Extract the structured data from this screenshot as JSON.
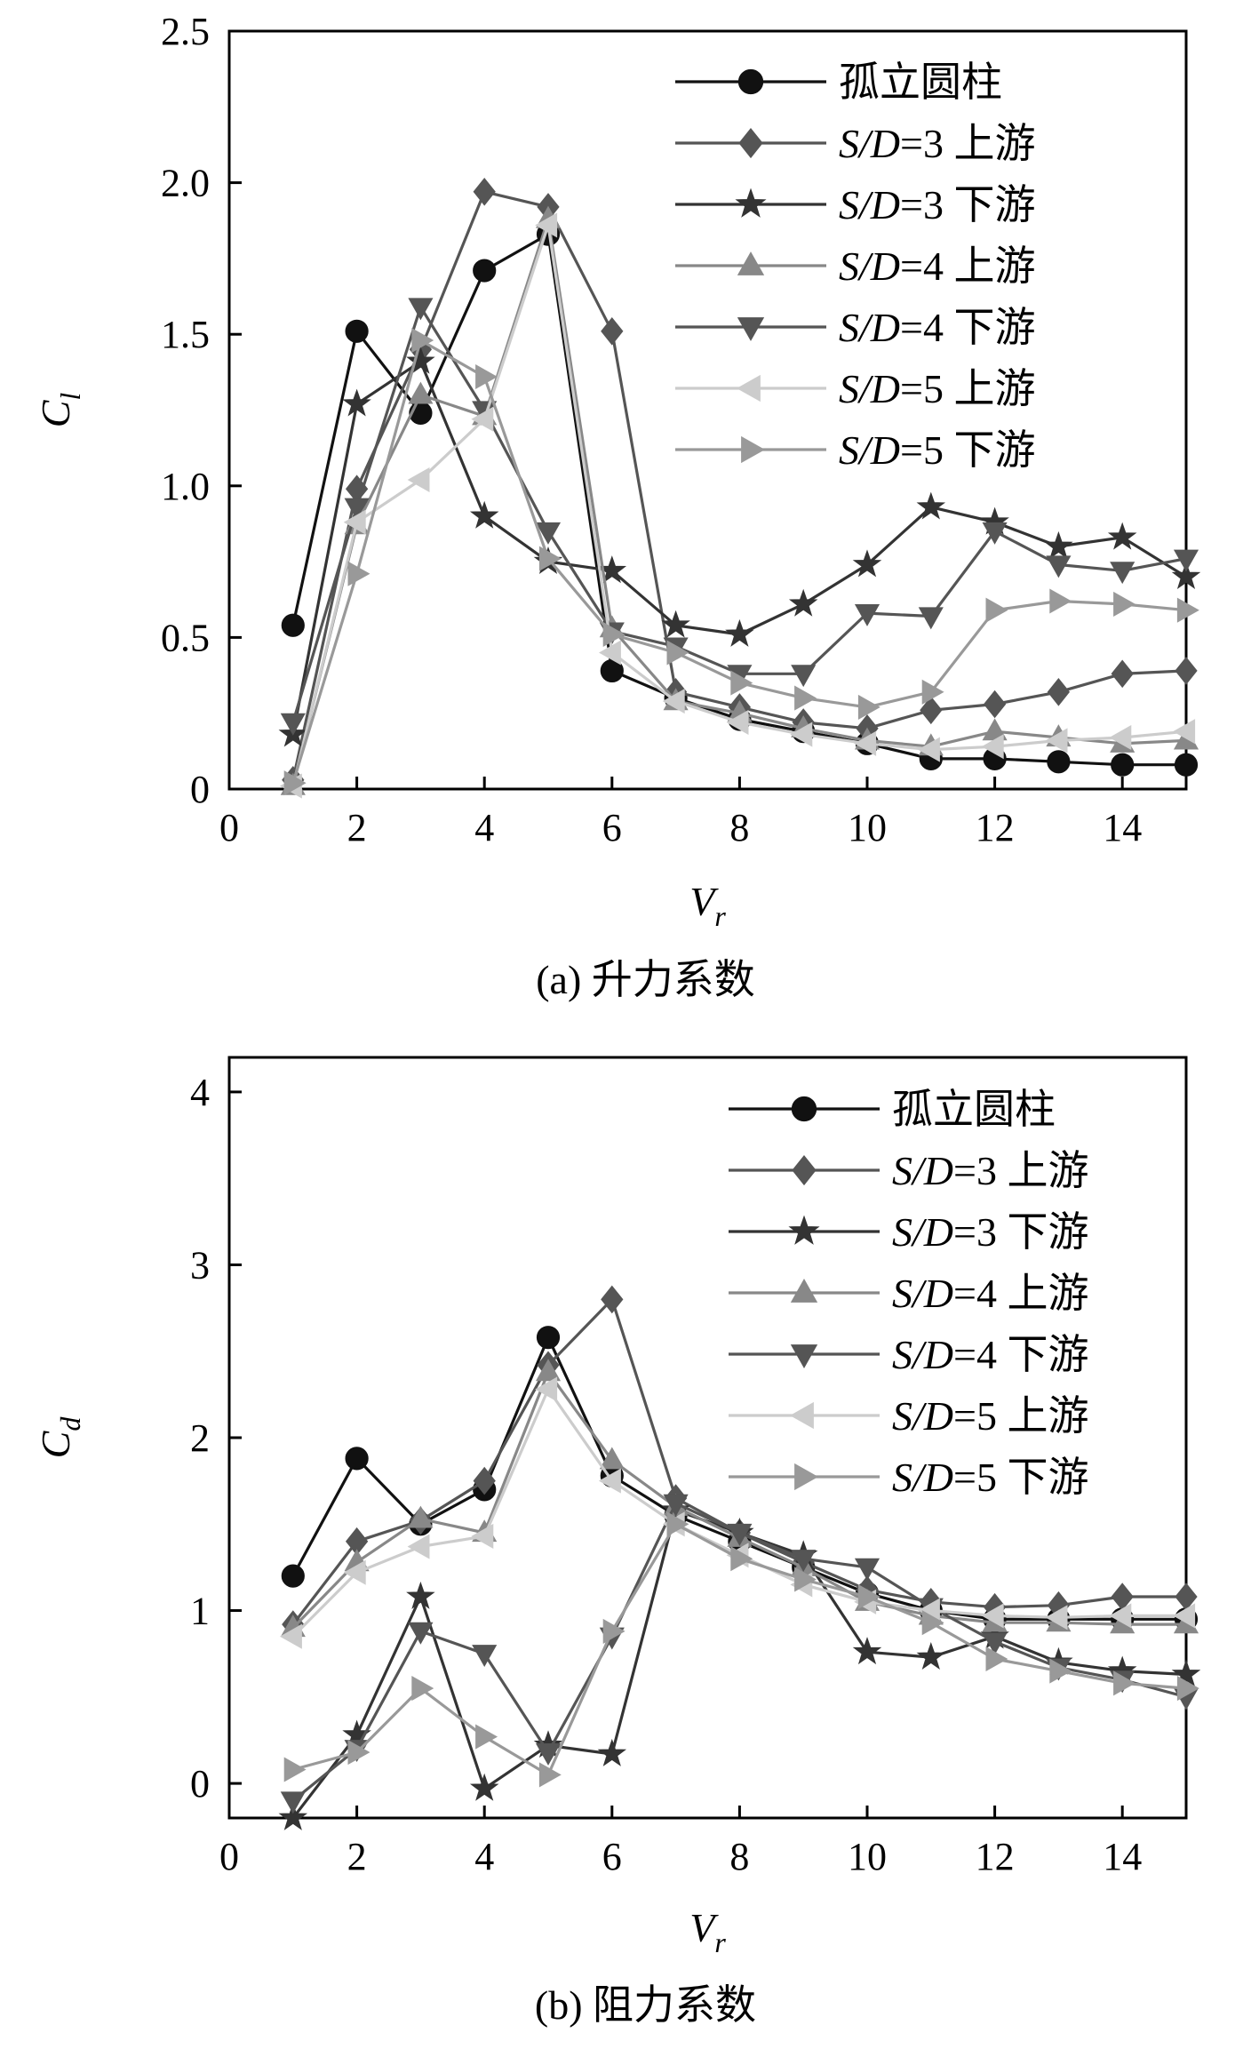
{
  "chart_data": [
    {
      "type": "line",
      "title": "",
      "caption": "(a) 升力系数",
      "xlabel": "V",
      "xlabel_sub": "r",
      "ylabel": "C",
      "ylabel_sub": "l",
      "xlim": [
        0,
        15
      ],
      "ylim": [
        0,
        2.5
      ],
      "xticks": [
        0,
        2,
        4,
        6,
        8,
        10,
        12,
        14
      ],
      "yticks": [
        0,
        0.5,
        1.0,
        1.5,
        2.0,
        2.5
      ],
      "ytick_labels": [
        "0",
        "0.5",
        "1.0",
        "1.5",
        "2.0",
        "2.5"
      ],
      "grid": false,
      "legend_position": "top-right",
      "x": [
        1,
        2,
        3,
        4,
        5,
        6,
        7,
        8,
        9,
        10,
        11,
        12,
        13,
        14,
        15
      ],
      "series": [
        {
          "name": "孤立圆柱",
          "legend_prefix": "",
          "legend_suffix": "孤立圆柱",
          "marker": "circle",
          "color": "#111111",
          "values": [
            0.54,
            1.51,
            1.24,
            1.71,
            1.83,
            0.39,
            0.3,
            0.23,
            0.19,
            0.15,
            0.1,
            0.1,
            0.09,
            0.08,
            0.08
          ]
        },
        {
          "name": "S/D=3 上游",
          "legend_prefix": "S/D",
          "legend_suffix": "=3 上游",
          "marker": "diamond",
          "color": "#555555",
          "values": [
            0.03,
            0.99,
            1.45,
            1.97,
            1.92,
            1.51,
            0.32,
            0.27,
            0.22,
            0.2,
            0.26,
            0.28,
            0.32,
            0.38,
            0.39
          ]
        },
        {
          "name": "S/D=3 下游",
          "legend_prefix": "S/D",
          "legend_suffix": "=3 下游",
          "marker": "star",
          "color": "#333333",
          "values": [
            0.18,
            1.27,
            1.41,
            0.9,
            0.75,
            0.72,
            0.54,
            0.51,
            0.61,
            0.74,
            0.93,
            0.88,
            0.8,
            0.83,
            0.7
          ]
        },
        {
          "name": "S/D=4 上游",
          "legend_prefix": "S/D",
          "legend_suffix": "=4 上游",
          "marker": "triangle-up",
          "color": "#888888",
          "values": [
            0.01,
            0.87,
            1.3,
            1.23,
            1.88,
            0.53,
            0.29,
            0.25,
            0.2,
            0.16,
            0.14,
            0.19,
            0.17,
            0.15,
            0.16
          ]
        },
        {
          "name": "S/D=4 下游",
          "legend_prefix": "S/D",
          "legend_suffix": "=4 下游",
          "marker": "triangle-down",
          "color": "#555555",
          "values": [
            0.22,
            0.93,
            1.59,
            1.25,
            0.85,
            0.52,
            0.47,
            0.38,
            0.38,
            0.58,
            0.57,
            0.85,
            0.74,
            0.72,
            0.76
          ]
        },
        {
          "name": "S/D=5 上游",
          "legend_prefix": "S/D",
          "legend_suffix": "=5 上游",
          "marker": "triangle-left",
          "color": "#cccccc",
          "values": [
            0.01,
            0.88,
            1.02,
            1.22,
            1.86,
            0.45,
            0.29,
            0.22,
            0.18,
            0.15,
            0.13,
            0.14,
            0.16,
            0.17,
            0.19
          ]
        },
        {
          "name": "S/D=5 下游",
          "legend_prefix": "S/D",
          "legend_suffix": "=5 下游",
          "marker": "triangle-right",
          "color": "#999999",
          "values": [
            0.02,
            0.71,
            1.48,
            1.36,
            0.76,
            0.51,
            0.45,
            0.35,
            0.3,
            0.27,
            0.32,
            0.59,
            0.62,
            0.61,
            0.59
          ]
        }
      ]
    },
    {
      "type": "line",
      "title": "",
      "caption": "(b) 阻力系数",
      "xlabel": "V",
      "xlabel_sub": "r",
      "ylabel": "C",
      "ylabel_sub": "d",
      "xlim": [
        0,
        15
      ],
      "ylim": [
        -0.2,
        4.2
      ],
      "xticks": [
        0,
        2,
        4,
        6,
        8,
        10,
        12,
        14
      ],
      "yticks": [
        0,
        1,
        2,
        3,
        4
      ],
      "ytick_labels": [
        "0",
        "1",
        "2",
        "3",
        "4"
      ],
      "grid": false,
      "legend_position": "top-right",
      "x": [
        1,
        2,
        3,
        4,
        5,
        6,
        7,
        8,
        9,
        10,
        11,
        12,
        13,
        14,
        15
      ],
      "series": [
        {
          "name": "孤立圆柱",
          "legend_prefix": "",
          "legend_suffix": "孤立圆柱",
          "marker": "circle",
          "color": "#111111",
          "values": [
            1.2,
            1.88,
            1.5,
            1.7,
            2.58,
            1.78,
            1.55,
            1.4,
            1.25,
            1.1,
            1.0,
            0.95,
            0.95,
            0.95,
            0.95
          ]
        },
        {
          "name": "S/D=3 上游",
          "legend_prefix": "S/D",
          "legend_suffix": "=3 上游",
          "marker": "diamond",
          "color": "#555555",
          "values": [
            0.92,
            1.4,
            1.52,
            1.75,
            2.42,
            2.8,
            1.65,
            1.45,
            1.28,
            1.12,
            1.05,
            1.02,
            1.03,
            1.08,
            1.08
          ]
        },
        {
          "name": "S/D=3 下游",
          "legend_prefix": "S/D",
          "legend_suffix": "=3 下游",
          "marker": "star",
          "color": "#333333",
          "values": [
            -0.2,
            0.28,
            1.08,
            -0.03,
            0.22,
            0.17,
            1.58,
            1.45,
            1.32,
            0.76,
            0.73,
            0.85,
            0.7,
            0.65,
            0.63
          ]
        },
        {
          "name": "S/D=4 上游",
          "legend_prefix": "S/D",
          "legend_suffix": "=4 上游",
          "marker": "triangle-up",
          "color": "#888888",
          "values": [
            0.9,
            1.28,
            1.53,
            1.45,
            2.38,
            1.87,
            1.6,
            1.42,
            1.25,
            1.05,
            0.97,
            0.93,
            0.93,
            0.92,
            0.92
          ]
        },
        {
          "name": "S/D=4 下游",
          "legend_prefix": "S/D",
          "legend_suffix": "=4 下游",
          "marker": "triangle-down",
          "color": "#555555",
          "values": [
            -0.1,
            0.2,
            0.88,
            0.75,
            0.18,
            0.85,
            1.62,
            1.45,
            1.3,
            1.25,
            1.02,
            0.82,
            0.67,
            0.6,
            0.5
          ]
        },
        {
          "name": "S/D=5 上游",
          "legend_prefix": "S/D",
          "legend_suffix": "=5 上游",
          "marker": "triangle-left",
          "color": "#cccccc",
          "values": [
            0.85,
            1.22,
            1.37,
            1.43,
            2.28,
            1.75,
            1.5,
            1.32,
            1.15,
            1.05,
            1.0,
            0.97,
            0.96,
            0.97,
            0.97
          ]
        },
        {
          "name": "S/D=5 下游",
          "legend_prefix": "S/D",
          "legend_suffix": "=5 下游",
          "marker": "triangle-right",
          "color": "#999999",
          "values": [
            0.08,
            0.18,
            0.55,
            0.27,
            0.05,
            0.88,
            1.5,
            1.3,
            1.18,
            1.08,
            0.93,
            0.72,
            0.65,
            0.58,
            0.55
          ]
        }
      ]
    }
  ]
}
